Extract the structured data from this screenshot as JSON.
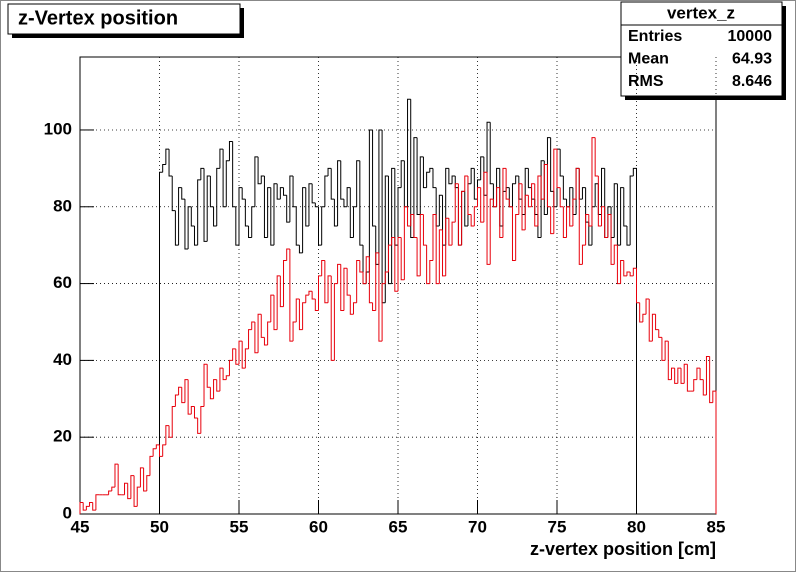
{
  "chart_data": {
    "type": "histogram",
    "title": "z-Vertex position",
    "xlabel": "z-vertex position [cm]",
    "stats": {
      "name": "vertex_z",
      "rows": [
        [
          "Entries",
          "10000"
        ],
        [
          "Mean",
          "64.93"
        ],
        [
          "RMS",
          "8.646"
        ]
      ]
    },
    "bins": [
      45,
      45.2,
      45.4,
      45.6,
      45.8,
      46,
      46.2,
      46.4,
      46.6,
      46.8,
      47,
      47.2,
      47.4,
      47.6,
      47.8,
      48,
      48.2,
      48.4,
      48.6,
      48.8,
      49,
      49.2,
      49.4,
      49.6,
      49.8,
      50,
      50.2,
      50.4,
      50.6,
      50.8,
      51,
      51.2,
      51.4,
      51.6,
      51.8,
      52,
      52.2,
      52.4,
      52.6,
      52.8,
      53,
      53.2,
      53.4,
      53.6,
      53.8,
      54,
      54.2,
      54.4,
      54.6,
      54.8,
      55,
      55.2,
      55.4,
      55.6,
      55.8,
      56,
      56.2,
      56.4,
      56.6,
      56.8,
      57,
      57.2,
      57.4,
      57.6,
      57.8,
      58,
      58.2,
      58.4,
      58.6,
      58.8,
      59,
      59.2,
      59.4,
      59.6,
      59.8,
      60,
      60.2,
      60.4,
      60.6,
      60.8,
      61,
      61.2,
      61.4,
      61.6,
      61.8,
      62,
      62.2,
      62.4,
      62.6,
      62.8,
      63,
      63.2,
      63.4,
      63.6,
      63.8,
      64,
      64.2,
      64.4,
      64.6,
      64.8,
      65,
      65.2,
      65.4,
      65.6,
      65.8,
      66,
      66.2,
      66.4,
      66.6,
      66.8,
      67,
      67.2,
      67.4,
      67.6,
      67.8,
      68,
      68.2,
      68.4,
      68.6,
      68.8,
      69,
      69.2,
      69.4,
      69.6,
      69.8,
      70,
      70.2,
      70.4,
      70.6,
      70.8,
      71,
      71.2,
      71.4,
      71.6,
      71.8,
      72,
      72.2,
      72.4,
      72.6,
      72.8,
      73,
      73.2,
      73.4,
      73.6,
      73.8,
      74,
      74.2,
      74.4,
      74.6,
      74.8,
      75,
      75.2,
      75.4,
      75.6,
      75.8,
      76,
      76.2,
      76.4,
      76.6,
      76.8,
      77,
      77.2,
      77.4,
      77.6,
      77.8,
      78,
      78.2,
      78.4,
      78.6,
      78.8,
      79,
      79.2,
      79.4,
      79.6,
      79.8,
      80,
      80.2,
      80.4,
      80.6,
      80.8,
      81,
      81.2,
      81.4,
      81.6,
      81.8,
      82,
      82.2,
      82.4,
      82.6,
      82.8,
      83,
      83.2,
      83.4,
      83.6,
      83.8,
      84,
      84.2,
      84.4,
      84.6,
      84.8,
      85
    ],
    "series": [
      {
        "color": "#000000",
        "values": [
          null,
          null,
          null,
          null,
          null,
          null,
          null,
          null,
          null,
          null,
          null,
          null,
          null,
          null,
          null,
          null,
          null,
          null,
          null,
          null,
          null,
          null,
          null,
          null,
          null,
          89,
          91,
          95,
          88,
          79,
          70,
          85,
          82,
          69,
          80,
          75,
          70,
          87,
          90,
          71,
          88,
          80,
          75,
          90,
          95,
          80,
          92,
          97,
          80,
          70,
          85,
          82,
          75,
          72,
          80,
          93,
          86,
          88,
          72,
          85,
          70,
          86,
          82,
          85,
          83,
          76,
          88,
          80,
          70,
          68,
          85,
          75,
          86,
          81,
          80,
          70,
          80,
          88,
          90,
          82,
          75,
          92,
          82,
          80,
          85,
          72,
          80,
          92,
          70,
          60,
          63,
          100,
          75,
          65,
          100,
          55,
          88,
          60,
          90,
          70,
          85,
          92,
          80,
          108,
          72,
          98,
          78,
          93,
          85,
          89,
          90,
          85,
          75,
          83,
          70,
          90,
          86,
          88,
          85,
          70,
          84,
          75,
          86,
          90,
          82,
          87,
          93,
          83,
          102,
          86,
          80,
          90,
          75,
          84,
          85,
          80,
          86,
          88,
          82,
          78,
          90,
          85,
          82,
          78,
          72,
          92,
          78,
          98,
          84,
          80,
          95,
          88,
          82,
          80,
          85,
          78,
          90,
          82,
          85,
          76,
          70,
          80,
          86,
          78,
          90,
          72,
          80,
          72,
          86,
          70,
          85,
          75,
          70,
          88,
          90,
          null,
          null,
          null,
          null,
          null,
          null,
          null,
          null,
          null,
          null,
          null,
          null,
          null,
          null,
          null,
          null,
          null,
          null,
          null,
          null,
          null,
          null,
          null,
          null,
          null
        ]
      },
      {
        "color": "#e8000b",
        "values": [
          3,
          1,
          2,
          3,
          1,
          5,
          5,
          5,
          5,
          6,
          7,
          13,
          5,
          5,
          8,
          4,
          10,
          2,
          7,
          12,
          6,
          10,
          15,
          17,
          18,
          15,
          18,
          23,
          20,
          28,
          31,
          33,
          29,
          35,
          26,
          28,
          25,
          21,
          28,
          39,
          33,
          30,
          35,
          32,
          38,
          35,
          36,
          40,
          43,
          39,
          45,
          38,
          43,
          48,
          50,
          42,
          52,
          46,
          44,
          50,
          57,
          48,
          62,
          54,
          66,
          69,
          45,
          50,
          56,
          48,
          55,
          57,
          58,
          56,
          53,
          62,
          66,
          55,
          62,
          40,
          60,
          65,
          53,
          64,
          57,
          52,
          55,
          66,
          63,
          60,
          67,
          55,
          53,
          68,
          45,
          60,
          63,
          70,
          72,
          58,
          72,
          61,
          80,
          75,
          78,
          72,
          62,
          78,
          70,
          60,
          66,
          78,
          60,
          74,
          62,
          77,
          70,
          76,
          86,
          70,
          84,
          88,
          78,
          75,
          80,
          85,
          76,
          89,
          65,
          82,
          80,
          85,
          72,
          90,
          82,
          80,
          66,
          78,
          86,
          74,
          83,
          80,
          86,
          75,
          88,
          82,
          91,
          80,
          73,
          95,
          85,
          80,
          72,
          80,
          75,
          82,
          90,
          65,
          70,
          78,
          75,
          98,
          88,
          75,
          80,
          72,
          78,
          65,
          70,
          60,
          66,
          62,
          63,
          62,
          64,
          55,
          50,
          52,
          56,
          45,
          52,
          48,
          46,
          40,
          45,
          35,
          38,
          34,
          38,
          34,
          39,
          32,
          32,
          35,
          38,
          35,
          31,
          41,
          29,
          32
        ]
      }
    ],
    "xlim": [
      45,
      85
    ],
    "xticks": [
      45,
      50,
      55,
      60,
      65,
      70,
      75,
      80,
      85
    ],
    "ylim": [
      0,
      119
    ],
    "yticks": [
      0,
      20,
      40,
      60,
      80,
      100
    ],
    "grid": true
  }
}
